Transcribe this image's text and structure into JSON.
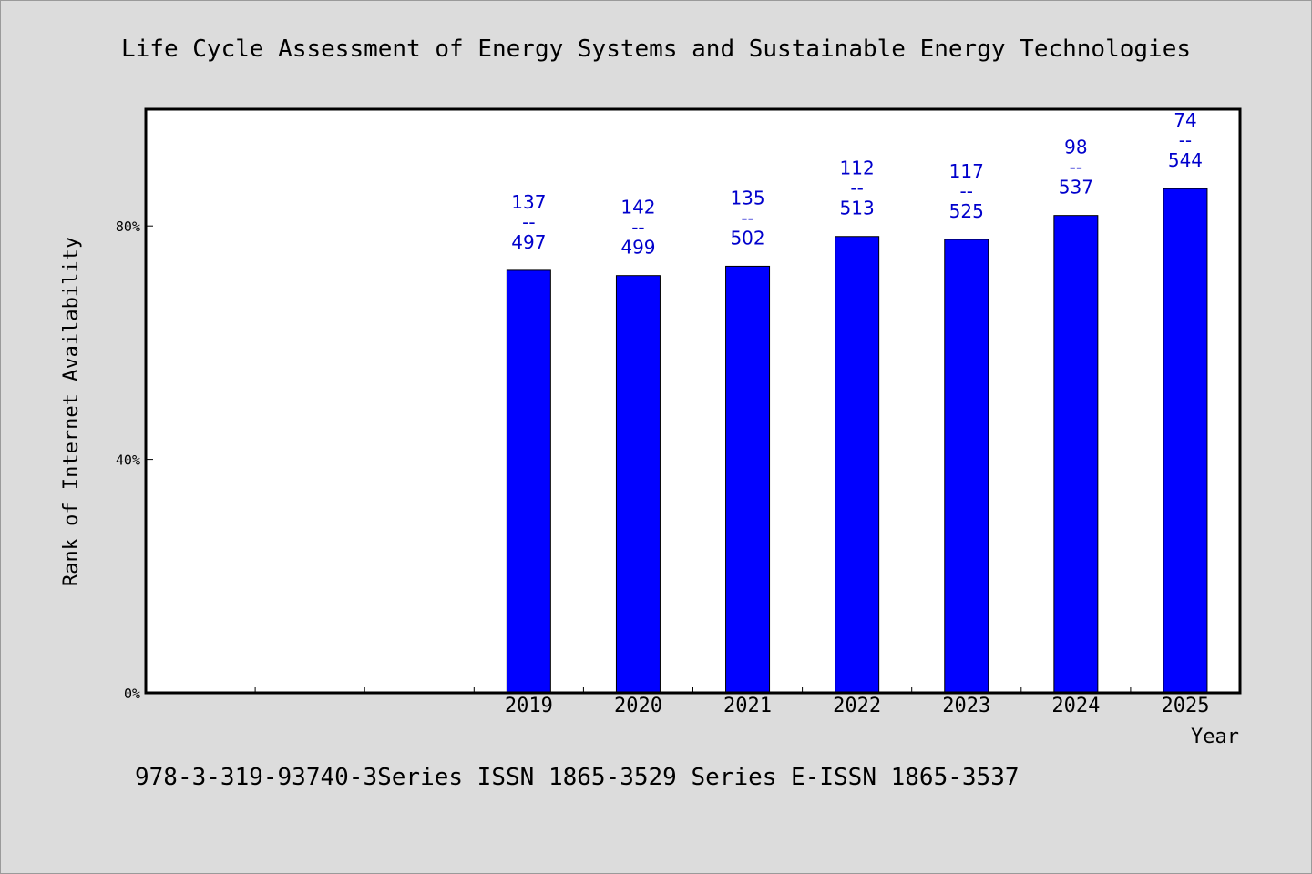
{
  "chart_data": {
    "type": "bar",
    "title": "Life Cycle Assessment of Energy Systems and Sustainable Energy Technologies",
    "ylabel": "Rank of Internet Availability",
    "xlabel": "Year",
    "categories": [
      "",
      "",
      "",
      "2019",
      "2020",
      "2021",
      "2022",
      "2023",
      "2024",
      "2025"
    ],
    "values": [
      null,
      null,
      null,
      72.4,
      71.5,
      73.1,
      78.2,
      77.7,
      81.8,
      86.4
    ],
    "ranks": [
      null,
      null,
      null,
      "137",
      "142",
      "135",
      "112",
      "117",
      "98",
      "74"
    ],
    "totals": [
      null,
      null,
      null,
      "497",
      "499",
      "502",
      "513",
      "525",
      "537",
      "544"
    ],
    "separator": "--",
    "yticks": [
      {
        "value": 0,
        "label": "0%"
      },
      {
        "value": 40,
        "label": "40%"
      },
      {
        "value": 80,
        "label": "80%"
      }
    ],
    "ylim": [
      0,
      100
    ],
    "grid": false,
    "bar_color": "#0000ff",
    "label_color": "#0000cc"
  },
  "footer": {
    "text": "978-3-319-93740-3Series ISSN 1865-3529 Series E-ISSN 1865-3537"
  }
}
